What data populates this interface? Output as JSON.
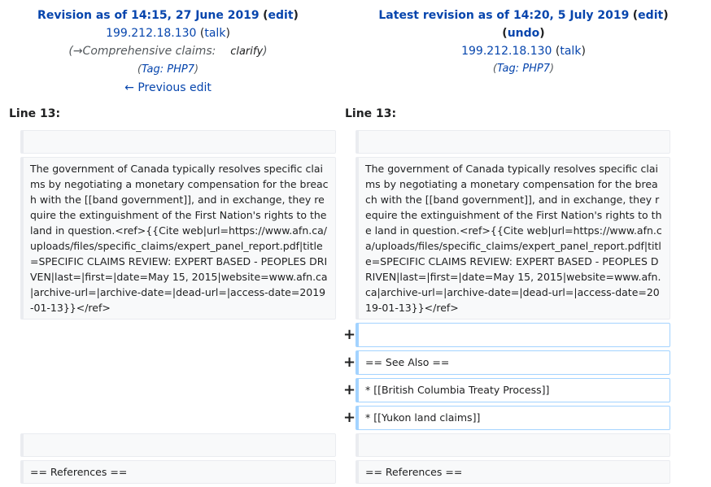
{
  "left": {
    "title_prefix": "Revision as of 14:15, 27 June 2019",
    "edit": "edit",
    "user": "199.212.18.130",
    "talk": "talk",
    "comment_arrow": "→Comprehensive claims:",
    "comment_text": "clarify",
    "tag_label": "Tag:",
    "tag": "PHP7",
    "previous_edit": "← Previous edit",
    "line_label": "Line 13:"
  },
  "right": {
    "title_prefix": "Latest revision as of 14:20, 5 July 2019",
    "edit": "edit",
    "undo": "undo",
    "user": "199.212.18.130",
    "talk": "talk",
    "tag_label": "Tag:",
    "tag": "PHP7",
    "line_label": "Line 13:"
  },
  "diff": {
    "paragraph": "The government of Canada typically resolves specific claims by negotiating a monetary compensation for the breach with the [[band government]], and in exchange, they require the extinguishment of the First Nation's rights to the land in question.<ref>{{Cite web|url=https://www.afn.ca/uploads/files/specific_claims/expert_panel_report.pdf|title=SPECIFIC CLAIMS REVIEW: EXPERT BASED - PEOPLES DRIVEN|last=|first=|date=May 15, 2015|website=www.afn.ca|archive-url=|archive-date=|dead-url=|access-date=2019-01-13}}</ref>",
    "added_lines": [
      "",
      "== See Also ==",
      "* [[British Columbia Treaty Process]]",
      "* [[Yukon land claims]]"
    ],
    "plus_sign": "+",
    "references": "== References =="
  }
}
